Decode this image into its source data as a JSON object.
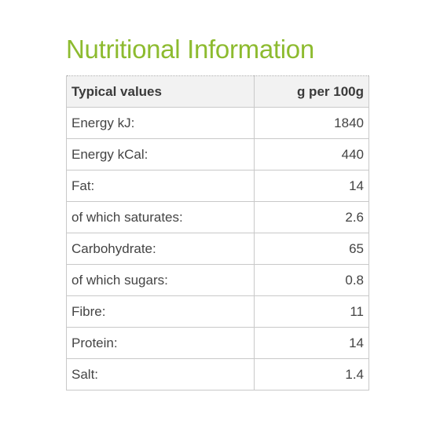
{
  "title": "Nutritional Information",
  "table": {
    "headers": [
      "Typical values",
      "g per 100g"
    ],
    "rows": [
      {
        "label": "Energy kJ:",
        "value": "1840"
      },
      {
        "label": "Energy kCal:",
        "value": "440"
      },
      {
        "label": "Fat:",
        "value": "14"
      },
      {
        "label": "of which saturates:",
        "value": "2.6"
      },
      {
        "label": "Carbohydrate:",
        "value": "65"
      },
      {
        "label": "of which sugars:",
        "value": "0.8"
      },
      {
        "label": "Fibre:",
        "value": "11"
      },
      {
        "label": "Protein:",
        "value": "14"
      },
      {
        "label": "Salt:",
        "value": "1.4"
      }
    ]
  },
  "colors": {
    "title": "#8dbb2f",
    "text": "#444444",
    "border": "#c9c9c9",
    "header_background": "#f2f2f2"
  }
}
